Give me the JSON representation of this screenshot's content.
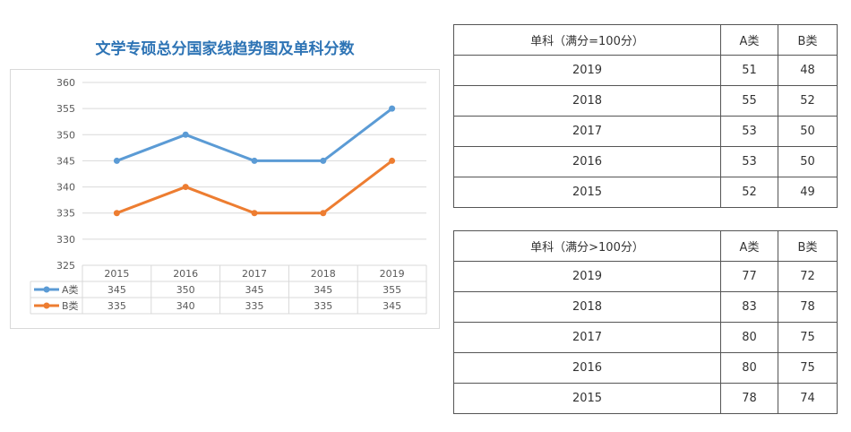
{
  "chart_data": {
    "type": "line",
    "title": "文学专硕总分国家线趋势图及单科分数",
    "categories": [
      "2015",
      "2016",
      "2017",
      "2018",
      "2019"
    ],
    "series": [
      {
        "name": "A类",
        "values": [
          345,
          350,
          345,
          345,
          355
        ],
        "color": "#5b9bd5"
      },
      {
        "name": "B类",
        "values": [
          335,
          340,
          335,
          335,
          345
        ],
        "color": "#ed7d31"
      }
    ],
    "ylim": [
      325,
      360
    ],
    "yticks": [
      325,
      330,
      335,
      340,
      345,
      350,
      355,
      360
    ],
    "grid": true,
    "legend": "data-table"
  },
  "tables": [
    {
      "headers": [
        "单科（满分=100分）",
        "A类",
        "B类"
      ],
      "rows": [
        [
          "2019",
          "51",
          "48"
        ],
        [
          "2018",
          "55",
          "52"
        ],
        [
          "2017",
          "53",
          "50"
        ],
        [
          "2016",
          "53",
          "50"
        ],
        [
          "2015",
          "52",
          "49"
        ]
      ]
    },
    {
      "headers": [
        "单科（满分>100分）",
        "A类",
        "B类"
      ],
      "rows": [
        [
          "2019",
          "77",
          "72"
        ],
        [
          "2018",
          "83",
          "78"
        ],
        [
          "2017",
          "80",
          "75"
        ],
        [
          "2016",
          "80",
          "75"
        ],
        [
          "2015",
          "78",
          "74"
        ]
      ]
    }
  ]
}
